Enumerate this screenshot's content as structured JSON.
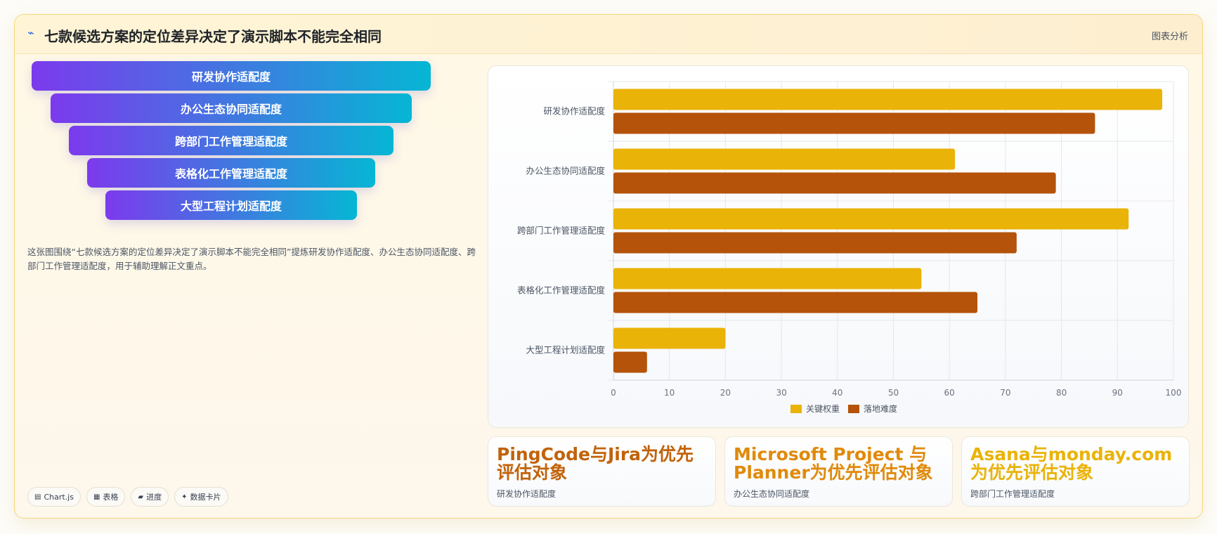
{
  "header": {
    "icon": "⌁",
    "title": "七款候选方案的定位差异决定了演示脚本不能完全相同",
    "tag": "图表分析"
  },
  "funnel": {
    "items": [
      "研发协作适配度",
      "办公生态协同适配度",
      "跨部门工作管理适配度",
      "表格化工作管理适配度",
      "大型工程计划适配度"
    ]
  },
  "description": "这张图围绕“七款候选方案的定位差异决定了演示脚本不能完全相同”提炼研发协作适配度、办公生态协同适配度、跨部门工作管理适配度，用于辅助理解正文重点。",
  "chips": [
    {
      "icon": "▤",
      "label": "Chart.js"
    },
    {
      "icon": "▦",
      "label": "表格"
    },
    {
      "icon": "▰",
      "label": "进度"
    },
    {
      "icon": "✦",
      "label": "数据卡片"
    }
  ],
  "chart_data": {
    "type": "bar",
    "orientation": "horizontal",
    "categories": [
      "研发协作适配度",
      "办公生态协同适配度",
      "跨部门工作管理适配度",
      "表格化工作管理适配度",
      "大型工程计划适配度"
    ],
    "series": [
      {
        "name": "关键权重",
        "color": "#eab308",
        "values": [
          98,
          61,
          92,
          55,
          20
        ]
      },
      {
        "name": "落地难度",
        "color": "#b45309",
        "values": [
          86,
          79,
          72,
          65,
          6
        ]
      }
    ],
    "xlim": [
      0,
      100
    ],
    "xticks": [
      0,
      10,
      20,
      30,
      40,
      50,
      60,
      70,
      80,
      90,
      100
    ],
    "grid": true,
    "legend": "bottom"
  },
  "stats": [
    {
      "value": "PingCode与Jira为优先评估对象",
      "label": "研发协作适配度",
      "color": "#c2620a"
    },
    {
      "value": "Microsoft Project 与 Planner为优先评估对象",
      "label": "办公生态协同适配度",
      "color": "#e08a0b"
    },
    {
      "value": "Asana与monday.com为优先评估对象",
      "label": "跨部门工作管理适配度",
      "color": "#eab308"
    }
  ]
}
